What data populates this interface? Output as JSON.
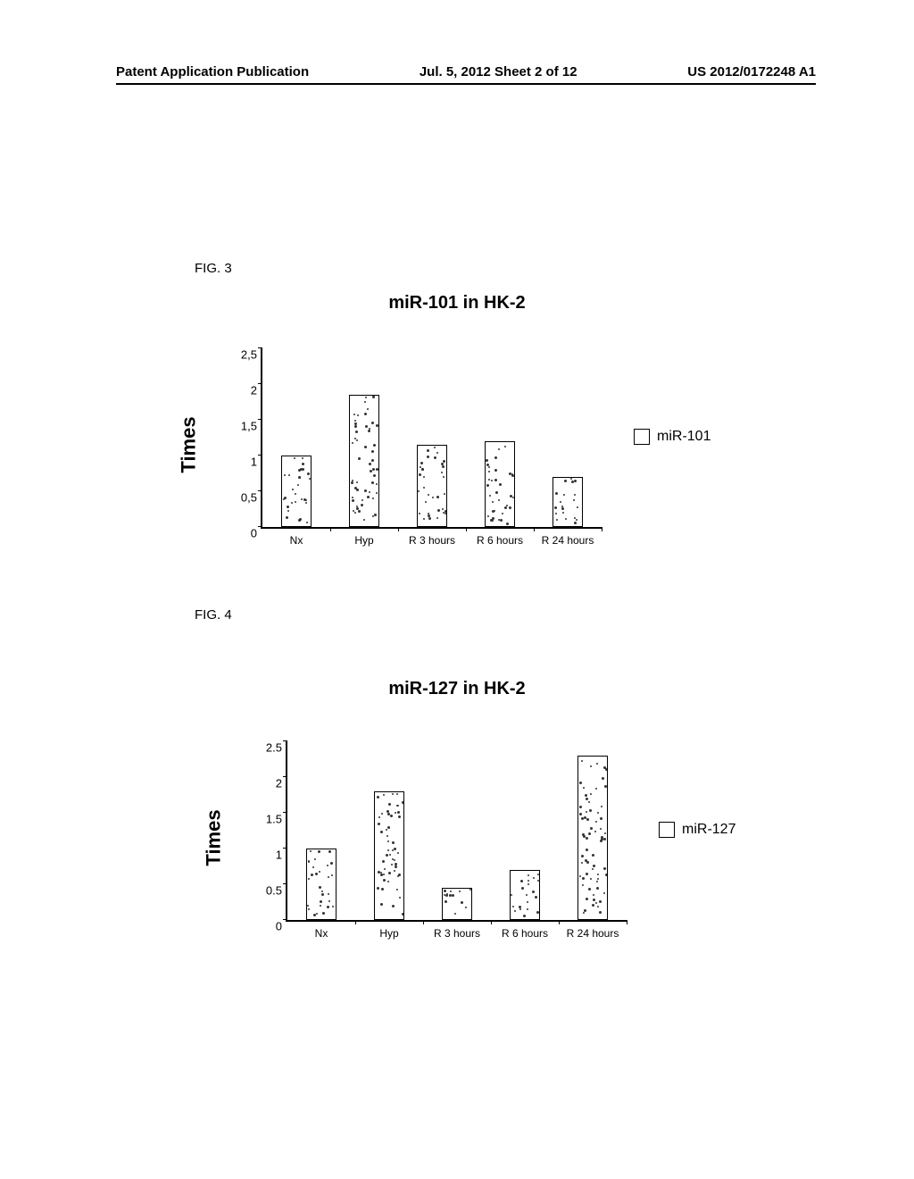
{
  "header": {
    "left": "Patent Application Publication",
    "center": "Jul. 5, 2012  Sheet 2 of 12",
    "right": "US 2012/0172248 A1"
  },
  "fig3": {
    "label": "FIG. 3",
    "title": "miR-101 in HK-2",
    "ylabel": "Times",
    "legend": "miR-101",
    "ylim": [
      0,
      2.5
    ],
    "ytick_step": 0.5,
    "yticks": [
      "0",
      "0,5",
      "1",
      "1,5",
      "2",
      "2,5"
    ],
    "categories": [
      "Nx",
      "Hyp",
      "R 3 hours",
      "R 6 hours",
      "R 24 hours"
    ],
    "values": [
      1.0,
      1.85,
      1.15,
      1.2,
      0.7
    ],
    "bar_width": 0.22,
    "bar_color": "#ffffff",
    "bar_border": "#000000",
    "title_fontsize": 20,
    "label_fontsize": 22,
    "tick_fontsize": 13,
    "background_color": "#ffffff"
  },
  "fig4": {
    "label": "FIG. 4",
    "title": "miR-127 in HK-2",
    "ylabel": "Times",
    "legend": "miR-127",
    "ylim": [
      0,
      2.5
    ],
    "ytick_step": 0.5,
    "yticks": [
      "0",
      "0.5",
      "1",
      "1.5",
      "2",
      "2.5"
    ],
    "categories": [
      "Nx",
      "Hyp",
      "R 3 hours",
      "R 6 hours",
      "R 24 hours"
    ],
    "values": [
      1.0,
      1.8,
      0.45,
      0.7,
      2.3
    ],
    "bar_width": 0.22,
    "bar_color": "#ffffff",
    "bar_border": "#000000",
    "title_fontsize": 20,
    "label_fontsize": 22,
    "tick_fontsize": 13,
    "background_color": "#ffffff"
  }
}
